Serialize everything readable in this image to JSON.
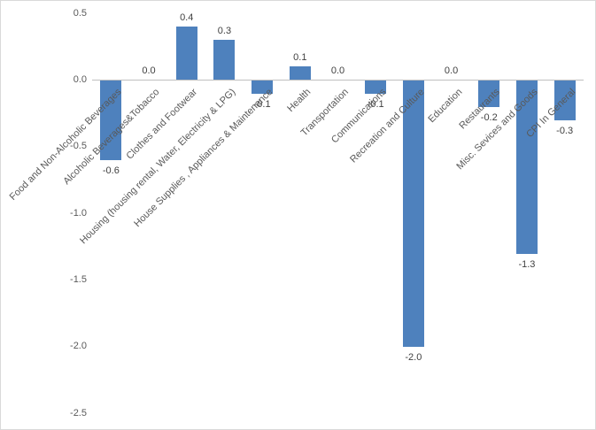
{
  "chart_data": {
    "type": "bar",
    "title": "",
    "xlabel": "",
    "ylabel": "",
    "categories": [
      "Food and Non-Alcoholic Beverages",
      "Alcoholic Beverages&Tobacco",
      "Clothes and Footwear",
      "Housing (housing rental, Water, Electricity & LPG)",
      "House Supplies , Appliances & Maintenance",
      "Health",
      "Transportation",
      "Communications",
      "Recreation and Culture",
      "Education",
      "Restaurants",
      "Misc. Sevices and Goods",
      "CPI In General"
    ],
    "values": [
      -0.6,
      0.0,
      0.4,
      0.3,
      -0.1,
      0.1,
      0.0,
      -0.1,
      -2.0,
      0.0,
      -0.2,
      -1.3,
      -0.3
    ],
    "data_labels": [
      "-0.6",
      "0.0",
      "0.4",
      "0.3",
      "-0.1",
      "0.1",
      "0.0",
      "-0.1",
      "-2.0",
      "0.0",
      "-0.2",
      "-1.3",
      "-0.3"
    ],
    "yticks": [
      0.5,
      0.0,
      -0.5,
      -1.0,
      -1.5,
      -2.0,
      -2.5
    ],
    "ytick_labels": [
      "0.5",
      "0.0",
      "-0.5",
      "-1.0",
      "-1.5",
      "-2.0",
      "-2.5"
    ],
    "ylim": [
      -2.5,
      0.5
    ],
    "grid": false,
    "legend": false,
    "bar_color": "#4e81bd",
    "value_label_color": "#404040",
    "axis_text_color": "#595959",
    "axis_line_color": "#bfbfbf"
  }
}
